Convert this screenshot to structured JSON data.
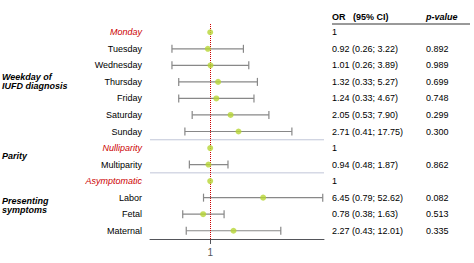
{
  "chart_data": {
    "type": "forest",
    "categories": [
      "Monday",
      "Tuesday",
      "Wednesday",
      "Thursday",
      "Friday",
      "Saturday",
      "Sunday",
      "Nulliparity",
      "Multiparity",
      "Asymptomatic",
      "Labor",
      "Fetal",
      "Maternal"
    ],
    "values": [
      1,
      0.92,
      1.01,
      1.32,
      1.24,
      2.05,
      2.71,
      1,
      0.94,
      1,
      6.45,
      0.78,
      2.27
    ],
    "ci_lo": [
      null,
      0.26,
      0.26,
      0.33,
      0.33,
      0.53,
      0.41,
      null,
      0.48,
      null,
      0.79,
      0.38,
      0.43
    ],
    "ci_hi": [
      null,
      3.22,
      3.89,
      5.27,
      4.67,
      7.9,
      17.75,
      null,
      1.87,
      null,
      52.62,
      1.63,
      12.01
    ],
    "value_labels": [
      "1",
      "0.92 (0.26; 3.22)",
      "1.01 (0.26; 3.89)",
      "1.32 (0.33; 5.27)",
      "1.24 (0.33; 4.67)",
      "2.05 (0.53; 7.90)",
      "2.71 (0.41; 17.75)",
      "1",
      "0.94 (0.48; 1.87)",
      "1",
      "6.45 (0.79; 52.62)",
      "0.78 (0.38; 1.63)",
      "2.27 (0.43; 12.01)"
    ],
    "p_labels": [
      null,
      "0.892",
      "0.989",
      "0.699",
      "0.748",
      "0.299",
      "0.300",
      null,
      "0.862",
      null,
      "0.082",
      "0.513",
      "0.335"
    ],
    "reference": [
      true,
      false,
      false,
      false,
      false,
      false,
      false,
      true,
      false,
      true,
      false,
      false,
      false
    ],
    "groups": [
      {
        "label": "Weekday of\nIUFD diagnosis",
        "categories": [
          "Monday",
          "Tuesday",
          "Wednesday",
          "Thursday",
          "Friday",
          "Saturday",
          "Sunday"
        ]
      },
      {
        "label": "Parity",
        "categories": [
          "Nulliparity",
          "Multiparity"
        ]
      },
      {
        "label": "Presenting\nsymptoms",
        "categories": [
          "Asymptomatic",
          "Labor",
          "Fetal",
          "Maternal"
        ]
      }
    ],
    "value_header": "OR   (95% CI)",
    "p_header": "p-value",
    "reference_line": 1,
    "color": "#cc0000",
    "log": "x",
    "xlim": [
      0.12,
      55
    ],
    "xticks": [
      1
    ],
    "grid": false
  }
}
